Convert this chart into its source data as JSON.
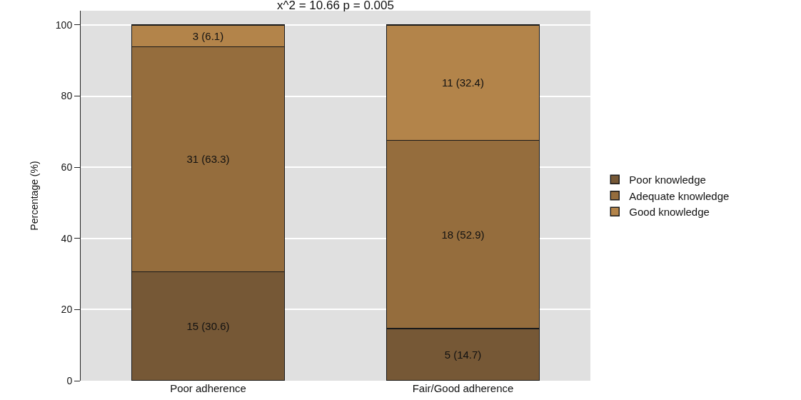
{
  "chart_data": {
    "type": "bar",
    "stacked": true,
    "title": "x^2 = 10.66 p = 0.005",
    "ylabel": "Percentage (%)",
    "categories": [
      "Poor adherence",
      "Fair/Good adherence"
    ],
    "series": [
      {
        "name": "Poor knowledge",
        "color": "#765836",
        "values": [
          30.6,
          14.7
        ],
        "value_labels": [
          "15 (30.6)",
          "5 (14.7)"
        ]
      },
      {
        "name": "Adequate knowledge",
        "color": "#956d3d",
        "values": [
          63.3,
          52.9
        ],
        "value_labels": [
          "31 (63.3)",
          "18 (52.9)"
        ]
      },
      {
        "name": "Good knowledge",
        "color": "#b3844a",
        "values": [
          6.1,
          32.4
        ],
        "value_labels": [
          "3 (6.1)",
          "11 (32.4)"
        ]
      }
    ],
    "ylim": [
      0,
      104
    ],
    "yticks": [
      0,
      20,
      40,
      60,
      80,
      100
    ],
    "grid": "y",
    "legend": "right"
  }
}
